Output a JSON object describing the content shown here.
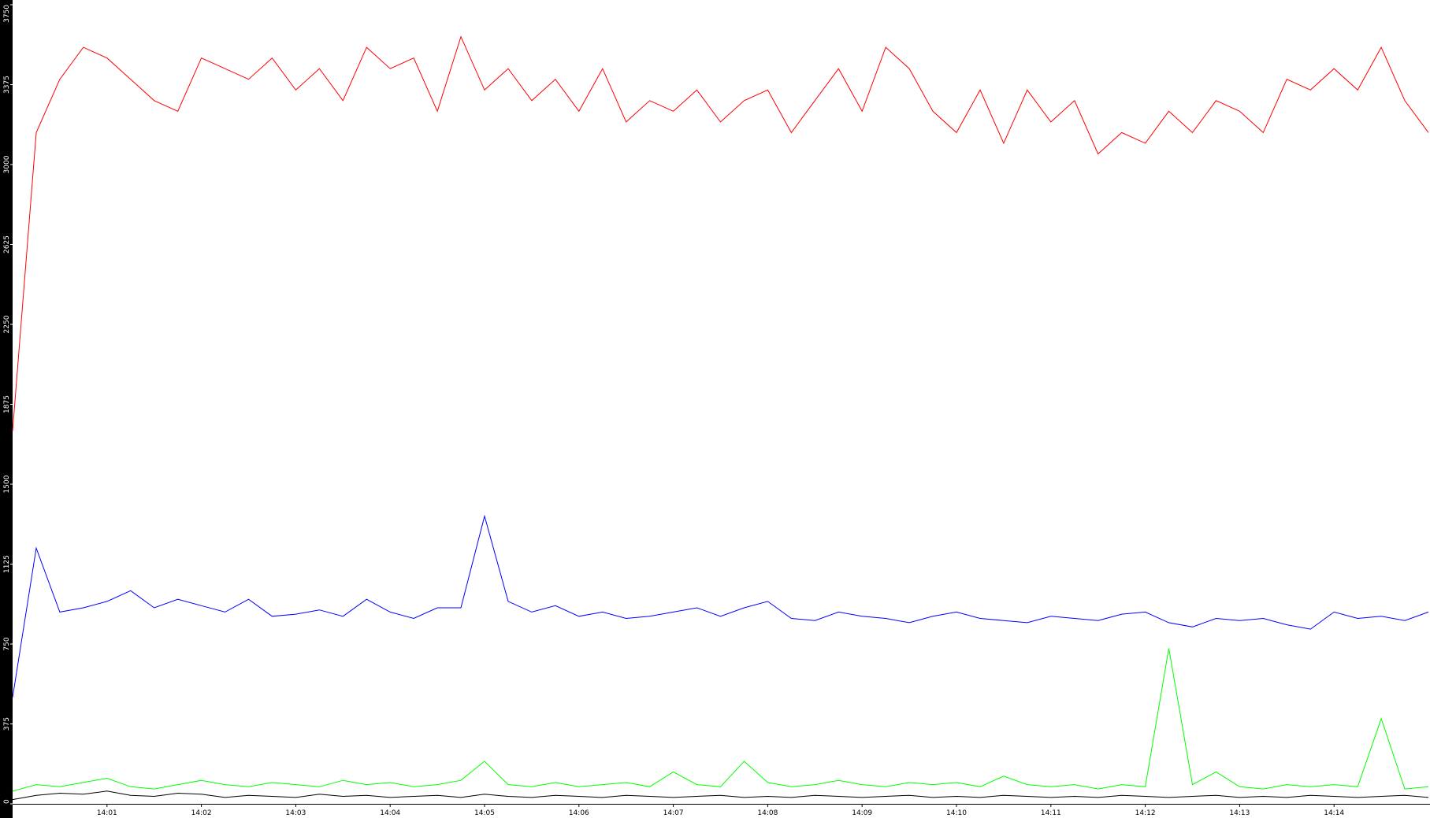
{
  "chart_data": {
    "type": "line",
    "categories": [
      null,
      null,
      null,
      null,
      "14:01",
      null,
      null,
      null,
      "14:02",
      null,
      null,
      null,
      "14:03",
      null,
      null,
      null,
      "14:04",
      null,
      null,
      null,
      "14:05",
      null,
      null,
      null,
      "14:06",
      null,
      null,
      null,
      "14:07",
      null,
      null,
      null,
      "14:08",
      null,
      null,
      null,
      "14:09",
      null,
      null,
      null,
      "14:10",
      null,
      null,
      null,
      "14:11",
      null,
      null,
      null,
      "14:12",
      null,
      null,
      null,
      "14:13",
      null,
      null,
      null,
      "14:14",
      null,
      null,
      null,
      null
    ],
    "series": [
      {
        "color": "#ff0000",
        "values": [
          1750,
          3150,
          3400,
          3550,
          3500,
          3400,
          3300,
          3250,
          3500,
          3450,
          3400,
          3500,
          3350,
          3450,
          3300,
          3550,
          3450,
          3500,
          3250,
          3600,
          3350,
          3450,
          3300,
          3400,
          3250,
          3450,
          3200,
          3300,
          3250,
          3350,
          3200,
          3300,
          3350,
          3150,
          3300,
          3450,
          3250,
          3550,
          3450,
          3250,
          3150,
          3350,
          3100,
          3350,
          3200,
          3300,
          3050,
          3150,
          3100,
          3250,
          3150,
          3300,
          3250,
          3150,
          3400,
          3350,
          3450,
          3350,
          3550,
          3300,
          3150
        ]
      },
      {
        "color": "#0000ff",
        "values": [
          500,
          1200,
          900,
          920,
          950,
          1000,
          920,
          960,
          930,
          900,
          960,
          880,
          890,
          910,
          880,
          960,
          900,
          870,
          920,
          920,
          1350,
          950,
          900,
          930,
          880,
          900,
          870,
          880,
          900,
          920,
          880,
          920,
          950,
          870,
          860,
          900,
          880,
          870,
          850,
          880,
          900,
          870,
          860,
          850,
          880,
          870,
          860,
          890,
          900,
          850,
          830,
          870,
          860,
          870,
          840,
          820,
          900,
          870,
          880,
          860,
          900
        ]
      },
      {
        "color": "#00ff00",
        "values": [
          60,
          90,
          80,
          100,
          120,
          80,
          70,
          90,
          110,
          90,
          80,
          100,
          90,
          80,
          110,
          90,
          100,
          80,
          90,
          110,
          200,
          90,
          80,
          100,
          80,
          90,
          100,
          80,
          150,
          90,
          80,
          200,
          100,
          80,
          90,
          110,
          90,
          80,
          100,
          90,
          100,
          80,
          130,
          90,
          80,
          90,
          70,
          90,
          80,
          730,
          90,
          150,
          80,
          70,
          90,
          80,
          90,
          80,
          400,
          70,
          80
        ]
      },
      {
        "color": "#000000",
        "values": [
          20,
          40,
          50,
          45,
          60,
          40,
          35,
          50,
          45,
          30,
          40,
          35,
          30,
          45,
          35,
          40,
          30,
          35,
          40,
          30,
          45,
          35,
          30,
          40,
          35,
          30,
          40,
          35,
          30,
          35,
          40,
          30,
          35,
          30,
          40,
          35,
          30,
          35,
          40,
          30,
          35,
          30,
          40,
          35,
          30,
          35,
          30,
          40,
          35,
          30,
          35,
          40,
          30,
          35,
          30,
          40,
          35,
          30,
          35,
          40,
          30
        ]
      }
    ],
    "ylim": [
      0,
      3750
    ],
    "yticks": [
      0,
      375,
      750,
      1125,
      1500,
      1875,
      2250,
      2625,
      3000,
      3375,
      3750
    ],
    "grid": false
  }
}
